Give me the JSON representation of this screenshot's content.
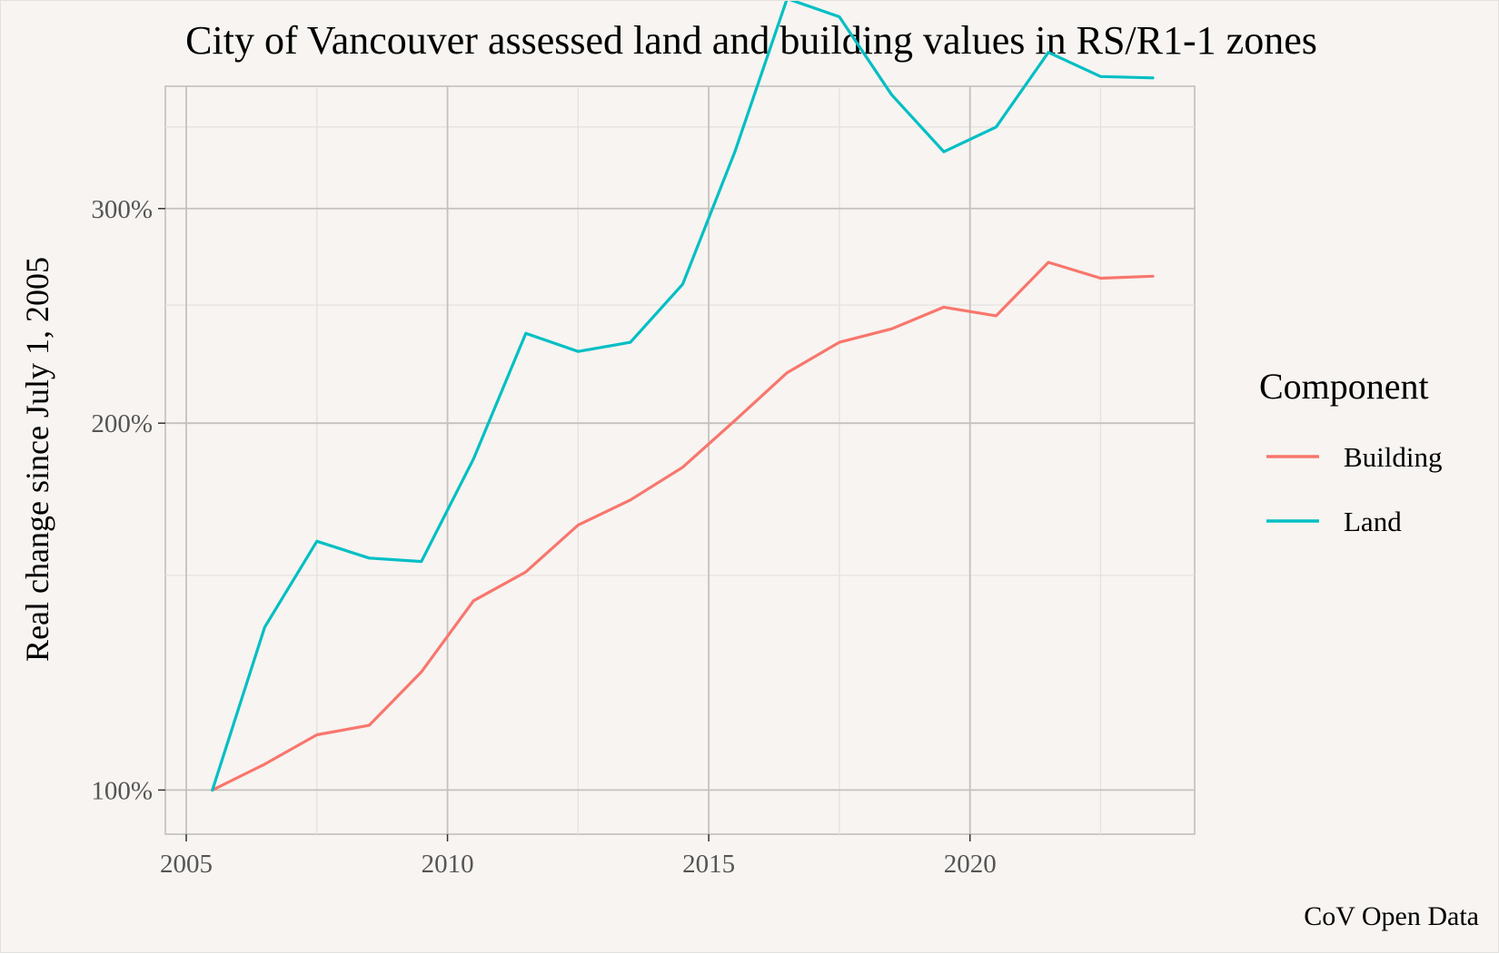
{
  "chart_data": {
    "type": "line",
    "title": "City of Vancouver assessed land and building values in RS/R1-1 zones",
    "xlabel": "",
    "ylabel": "Real change since July 1, 2005",
    "caption": "CoV Open Data",
    "x_scale": "linear",
    "y_scale": "log",
    "xlim": [
      2004.6,
      2024.3
    ],
    "ylim": [
      0.92,
      3.78
    ],
    "x_ticks": [
      2005,
      2010,
      2015,
      2020
    ],
    "x_tick_labels": [
      "2005",
      "2010",
      "2015",
      "2020"
    ],
    "x_minor_ticks": [
      2007.5,
      2012.5,
      2017.5,
      2022.5
    ],
    "y_ticks": [
      1,
      2,
      3
    ],
    "y_tick_labels": [
      "100%",
      "200%",
      "300%"
    ],
    "y_minor_ticks": [
      1.5,
      2.5,
      3.5
    ],
    "grid": true,
    "legend": {
      "title": "Component",
      "position": "right",
      "entries": [
        "Building",
        "Land"
      ]
    },
    "x": [
      2005.5,
      2006.5,
      2007.5,
      2008.5,
      2009.5,
      2010.5,
      2011.5,
      2012.5,
      2013.5,
      2014.5,
      2015.5,
      2016.5,
      2017.5,
      2018.5,
      2019.5,
      2020.5,
      2021.5,
      2022.5,
      2023.5
    ],
    "series": [
      {
        "name": "Building",
        "color": "#f8766d",
        "values": [
          1.0,
          1.05,
          1.11,
          1.13,
          1.25,
          1.43,
          1.51,
          1.65,
          1.73,
          1.84,
          2.01,
          2.2,
          2.33,
          2.39,
          2.49,
          2.45,
          2.71,
          2.63,
          2.64
        ]
      },
      {
        "name": "Land",
        "color": "#00bfc4",
        "values": [
          1.0,
          1.36,
          1.6,
          1.55,
          1.54,
          1.87,
          2.37,
          2.29,
          2.33,
          2.6,
          3.34,
          4.46,
          4.31,
          3.72,
          3.34,
          3.5,
          4.03,
          3.85,
          3.84
        ]
      }
    ]
  }
}
